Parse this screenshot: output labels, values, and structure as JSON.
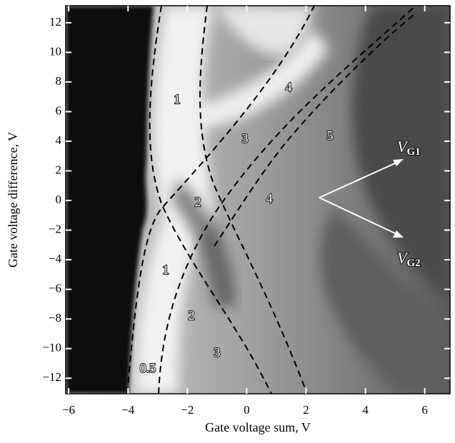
{
  "chart_data": {
    "type": "heatmap",
    "xlabel": "Gate voltage sum, V",
    "ylabel": "Gate voltage difference, V",
    "xlim": [
      -6.1,
      6.85
    ],
    "ylim": [
      -13.05,
      13.15
    ],
    "xticks": [
      {
        "value": -6,
        "label": "−6"
      },
      {
        "value": -4,
        "label": "−4"
      },
      {
        "value": -2,
        "label": "−2"
      },
      0,
      2,
      4,
      6
    ],
    "yticks": [
      {
        "value": -12,
        "label": "−12"
      },
      {
        "value": -10,
        "label": "−10"
      },
      {
        "value": -8,
        "label": "−8"
      },
      {
        "value": -6,
        "label": "−6"
      },
      {
        "value": -4,
        "label": "−4"
      },
      {
        "value": -2,
        "label": "−2"
      },
      0,
      2,
      4,
      6,
      8,
      10,
      12
    ],
    "grid": false,
    "annotations": [
      "1",
      "4",
      "3",
      "5",
      "2",
      "4",
      "1",
      "2",
      "3",
      "0.5"
    ],
    "arrow_labels": [
      {
        "main": "V",
        "sub": "G1"
      },
      {
        "main": "V",
        "sub": "G2"
      }
    ]
  }
}
